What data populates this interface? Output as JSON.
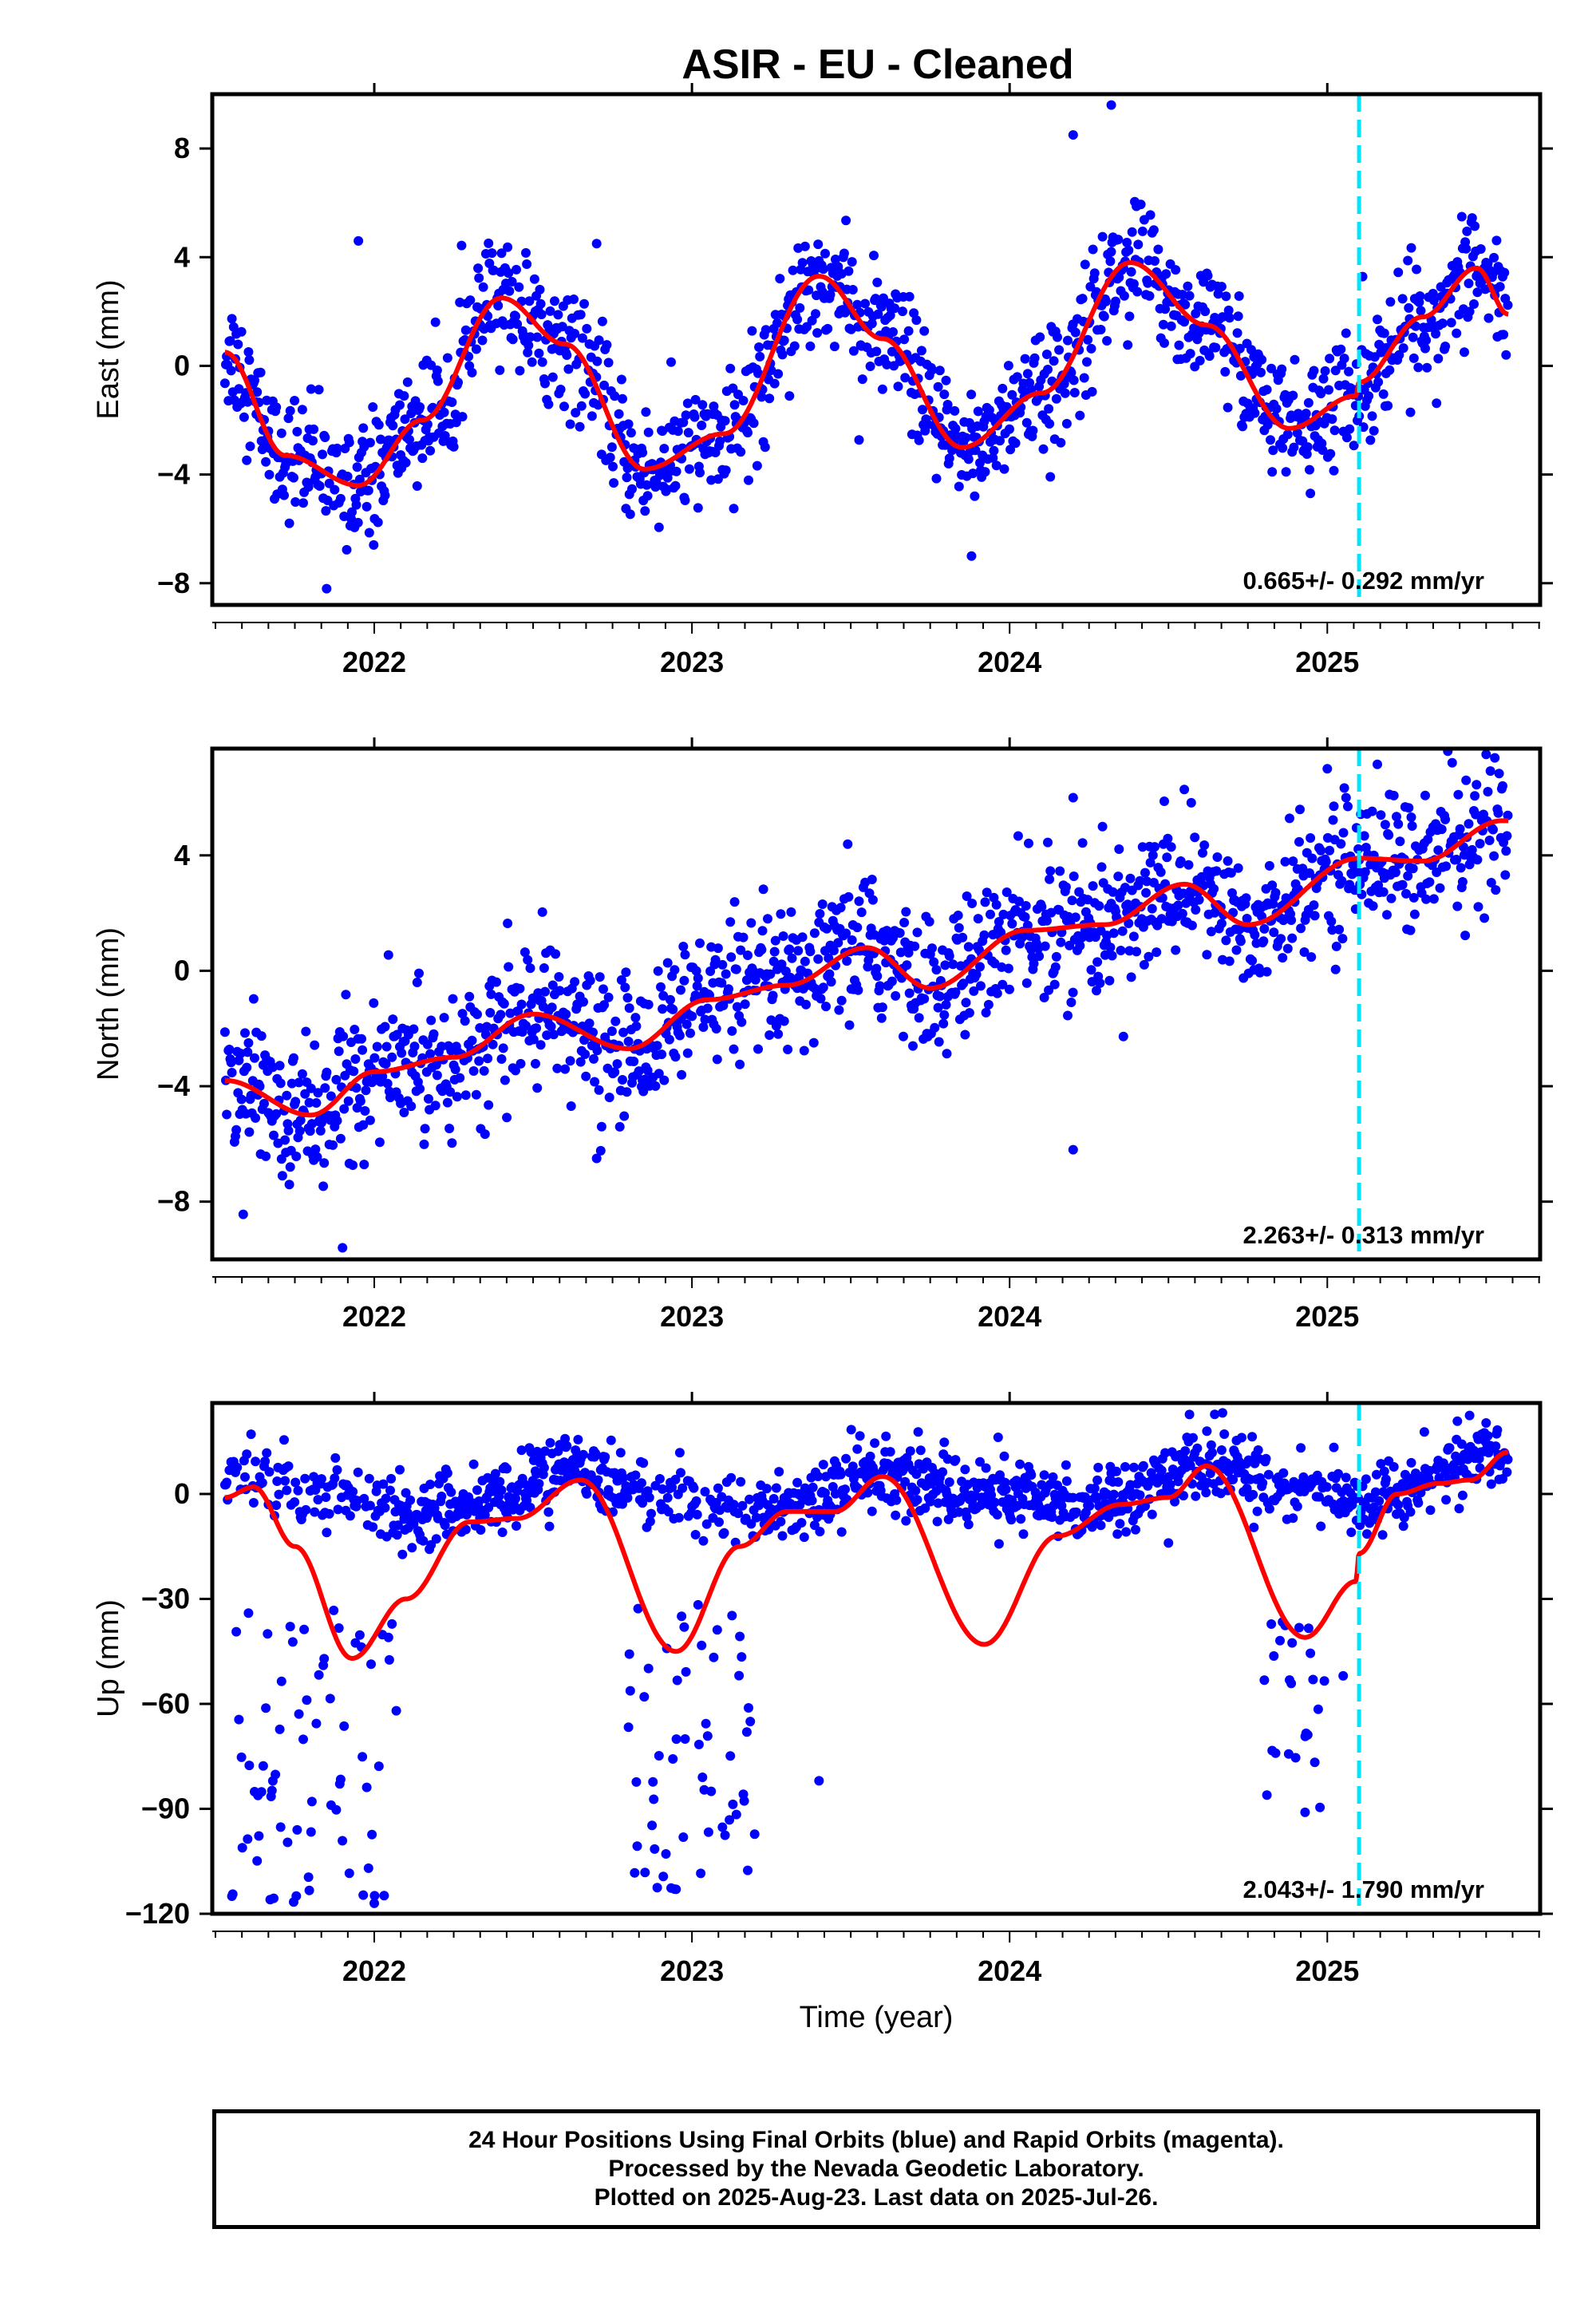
{
  "title": "ASIR  - EU - Cleaned",
  "colors": {
    "data_points": "#0000ff",
    "fit_line": "#ff0000",
    "break_line": "#00e5ff",
    "frame": "#000000"
  },
  "caption": {
    "line1": "24 Hour Positions Using Final Orbits (blue) and Rapid Orbits (magenta).",
    "line2": "Processed by the Nevada Geodetic Laboratory.",
    "line3": "Plotted on 2025-Aug-23. Last data on 2025-Jul-26."
  },
  "chart_data": [
    {
      "type": "scatter",
      "component": "east",
      "ylabel": "East (mm)",
      "xlabel": "",
      "xlim": [
        2021.49,
        2025.67
      ],
      "ylim": [
        -8.8,
        10
      ],
      "x_ticks": [
        2022,
        2023,
        2024,
        2025
      ],
      "y_ticks": [
        -8,
        -4,
        0,
        4,
        8
      ],
      "rate_label": "0.665+/- 0.292 mm/yr",
      "break_epoch": 2025.1,
      "grid": false,
      "series": [
        {
          "role": "data",
          "marker": "dot",
          "model": {
            "t0": 2021.53,
            "t1": 2025.57,
            "y0": 0.5,
            "rate": 0.665,
            "seasonal": [
              {
                "year": 2021.53,
                "value": 0.5
              },
              {
                "year": 2021.8,
                "value": -4.3
              },
              {
                "year": 2021.95,
                "value": -4.4
              },
              {
                "year": 2022.4,
                "value": 2.5
              },
              {
                "year": 2022.85,
                "value": -3.8
              },
              {
                "year": 2023.4,
                "value": 3.3
              },
              {
                "year": 2023.85,
                "value": -3.0
              },
              {
                "year": 2024.38,
                "value": 3.8
              },
              {
                "year": 2024.88,
                "value": -2.3
              },
              {
                "year": 2025.1,
                "value": -0.8
              },
              {
                "year": 2025.47,
                "value": 3.6
              },
              {
                "year": 2025.57,
                "value": 1.9
              }
            ],
            "scatter_sd": 1.1
          },
          "outliers": [
            {
              "x": 2024.2,
              "y": 8.5
            },
            {
              "x": 2024.32,
              "y": 9.6
            },
            {
              "x": 2023.88,
              "y": -7.0
            },
            {
              "x": 2021.85,
              "y": -8.2
            },
            {
              "x": 2021.95,
              "y": 4.6
            },
            {
              "x": 2022.7,
              "y": 4.5
            }
          ]
        },
        {
          "role": "fit",
          "line": "solid",
          "knots": [
            {
              "year": 2021.53,
              "value": 0.5
            },
            {
              "year": 2021.72,
              "value": -3.3
            },
            {
              "year": 2021.95,
              "value": -4.4
            },
            {
              "year": 2022.15,
              "value": -2.0
            },
            {
              "year": 2022.4,
              "value": 2.5
            },
            {
              "year": 2022.6,
              "value": 0.8
            },
            {
              "year": 2022.85,
              "value": -3.8
            },
            {
              "year": 2023.1,
              "value": -2.5
            },
            {
              "year": 2023.4,
              "value": 3.3
            },
            {
              "year": 2023.6,
              "value": 1.0
            },
            {
              "year": 2023.85,
              "value": -3.0
            },
            {
              "year": 2024.1,
              "value": -1.0
            },
            {
              "year": 2024.38,
              "value": 3.8
            },
            {
              "year": 2024.62,
              "value": 1.5
            },
            {
              "year": 2024.88,
              "value": -2.3
            },
            {
              "year": 2025.09,
              "value": -1.1
            },
            {
              "year": 2025.1,
              "value": -0.6
            },
            {
              "year": 2025.3,
              "value": 1.8
            },
            {
              "year": 2025.47,
              "value": 3.6
            },
            {
              "year": 2025.57,
              "value": 1.9
            }
          ]
        }
      ]
    },
    {
      "type": "scatter",
      "component": "north",
      "ylabel": "North (mm)",
      "xlabel": "",
      "xlim": [
        2021.49,
        2025.67
      ],
      "ylim": [
        -10,
        7.7
      ],
      "x_ticks": [
        2022,
        2023,
        2024,
        2025
      ],
      "y_ticks": [
        -8,
        -4,
        0,
        4
      ],
      "rate_label": "2.263+/- 0.313 mm/yr",
      "break_epoch": 2025.1,
      "grid": false,
      "series": [
        {
          "role": "data",
          "marker": "dot",
          "model": {
            "scatter_sd": 1.2
          },
          "outliers": [
            {
              "x": 2021.9,
              "y": -9.6
            },
            {
              "x": 2024.2,
              "y": -6.2
            },
            {
              "x": 2022.7,
              "y": -6.5
            },
            {
              "x": 2025.0,
              "y": 7.0
            },
            {
              "x": 2025.5,
              "y": 7.5
            },
            {
              "x": 2024.2,
              "y": 6.0
            }
          ]
        },
        {
          "role": "fit",
          "line": "solid",
          "knots": [
            {
              "year": 2021.53,
              "value": -3.8
            },
            {
              "year": 2021.8,
              "value": -5.0
            },
            {
              "year": 2022.0,
              "value": -3.5
            },
            {
              "year": 2022.25,
              "value": -3.0
            },
            {
              "year": 2022.5,
              "value": -1.5
            },
            {
              "year": 2022.8,
              "value": -2.7
            },
            {
              "year": 2023.05,
              "value": -1.0
            },
            {
              "year": 2023.3,
              "value": -0.5
            },
            {
              "year": 2023.55,
              "value": 0.8
            },
            {
              "year": 2023.75,
              "value": -0.6
            },
            {
              "year": 2024.05,
              "value": 1.4
            },
            {
              "year": 2024.3,
              "value": 1.6
            },
            {
              "year": 2024.55,
              "value": 3.0
            },
            {
              "year": 2024.75,
              "value": 1.6
            },
            {
              "year": 2025.1,
              "value": 3.9
            },
            {
              "year": 2025.3,
              "value": 3.8
            },
            {
              "year": 2025.55,
              "value": 5.2
            },
            {
              "year": 2025.57,
              "value": 5.2
            }
          ]
        }
      ]
    },
    {
      "type": "scatter",
      "component": "up",
      "ylabel": "Up (mm)",
      "xlabel": "Time (year)",
      "xlim": [
        2021.49,
        2025.67
      ],
      "ylim": [
        -120,
        26
      ],
      "x_ticks": [
        2022,
        2023,
        2024,
        2025
      ],
      "y_ticks": [
        -120,
        -90,
        -60,
        -30,
        0
      ],
      "rate_label": "2.043+/- 1.790 mm/yr",
      "break_epoch": 2025.1,
      "grid": false,
      "series": [
        {
          "role": "data",
          "marker": "dot",
          "model": {
            "scatter_sd": 5.0,
            "dips": [
              {
                "from": 2021.55,
                "to": 2022.08,
                "min": -117,
                "max": -20
              },
              {
                "from": 2022.8,
                "to": 2023.2,
                "min": -113,
                "max": -20
              },
              {
                "from": 2024.8,
                "to": 2025.0,
                "min": -91,
                "max": -30
              }
            ]
          },
          "outliers": [
            {
              "x": 2022.0,
              "y": -117
            },
            {
              "x": 2022.95,
              "y": -113
            },
            {
              "x": 2024.93,
              "y": -91
            },
            {
              "x": 2023.4,
              "y": -82
            },
            {
              "x": 2025.05,
              "y": -52
            },
            {
              "x": 2024.5,
              "y": -14
            }
          ]
        },
        {
          "role": "fit",
          "line": "solid",
          "knots": [
            {
              "year": 2021.53,
              "value": -1
            },
            {
              "year": 2021.62,
              "value": 2
            },
            {
              "year": 2021.75,
              "value": -15
            },
            {
              "year": 2021.93,
              "value": -47
            },
            {
              "year": 2022.1,
              "value": -30
            },
            {
              "year": 2022.3,
              "value": -8
            },
            {
              "year": 2022.45,
              "value": -7
            },
            {
              "year": 2022.65,
              "value": 4
            },
            {
              "year": 2022.95,
              "value": -45
            },
            {
              "year": 2023.15,
              "value": -15
            },
            {
              "year": 2023.3,
              "value": -5
            },
            {
              "year": 2023.45,
              "value": -5
            },
            {
              "year": 2023.6,
              "value": 5
            },
            {
              "year": 2023.92,
              "value": -43
            },
            {
              "year": 2024.15,
              "value": -12
            },
            {
              "year": 2024.35,
              "value": -3
            },
            {
              "year": 2024.5,
              "value": -1
            },
            {
              "year": 2024.62,
              "value": 8
            },
            {
              "year": 2024.93,
              "value": -41
            },
            {
              "year": 2025.09,
              "value": -25
            },
            {
              "year": 2025.1,
              "value": -17
            },
            {
              "year": 2025.22,
              "value": 0
            },
            {
              "year": 2025.35,
              "value": 3
            },
            {
              "year": 2025.45,
              "value": 4
            },
            {
              "year": 2025.57,
              "value": 12
            }
          ]
        }
      ]
    }
  ]
}
